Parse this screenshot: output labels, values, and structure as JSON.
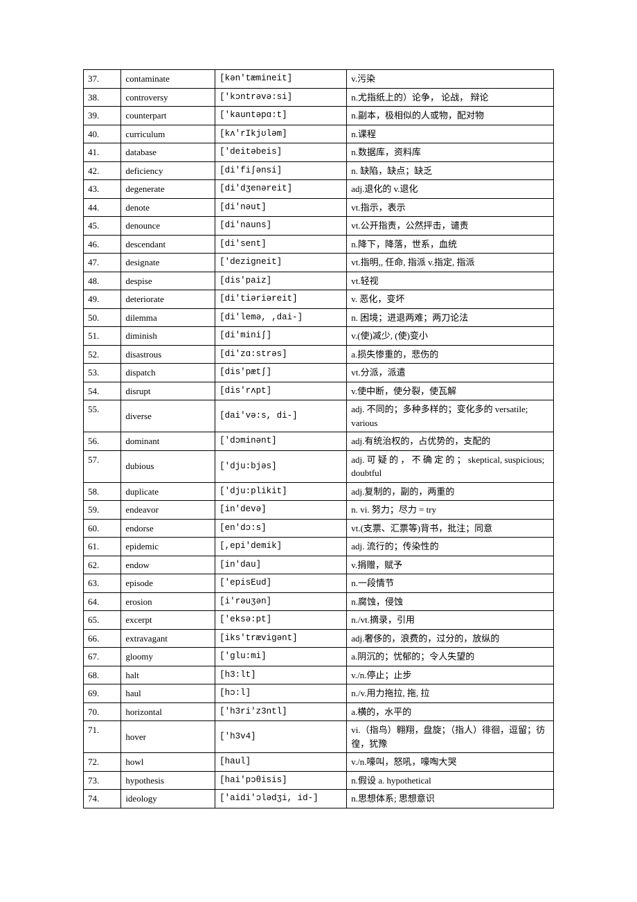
{
  "colors": {
    "page_bg": "#ffffff",
    "border": "#000000",
    "text": "#000000"
  },
  "columns": [
    "num",
    "word",
    "ipa",
    "definition"
  ],
  "rows": [
    {
      "num": "37.",
      "word": "contaminate",
      "ipa": "[kən'tæmineit]",
      "def": "v.污染"
    },
    {
      "num": "38.",
      "word": "controversy",
      "ipa": "['kɔntrəvə:si]",
      "def": "n.尤指纸上的）论争，  论战，  辩论"
    },
    {
      "num": "39.",
      "word": "counterpart",
      "ipa": "['kauntəpɑ:t]",
      "def": " n.副本，极相似的人或物，配对物"
    },
    {
      "num": "40.",
      "word": "curriculum",
      "ipa": "[kʌ'rIkjʊləm]",
      "def": "n.课程"
    },
    {
      "num": "41.",
      "word": "database",
      "ipa": "['deitəbeis]",
      "def": " n.数据库，资料库"
    },
    {
      "num": "42.",
      "word": "deficiency",
      "ipa": "[di'fiʃənsi]",
      "def": "n. 缺陷，缺点；缺乏"
    },
    {
      "num": "43.",
      "word": "degenerate",
      "ipa": "[di'dʒenəreit]",
      "def": "adj.退化的   v.退化"
    },
    {
      "num": "44.",
      "word": "denote",
      "ipa": "[di'nəut]",
      "def": "vt.指示，表示"
    },
    {
      "num": "45.",
      "word": "denounce",
      "ipa": "[di'nauns]",
      "def": "vt.公开指责，公然抨击，谴责"
    },
    {
      "num": "46.",
      "word": "descendant",
      "ipa": "[di'sent]",
      "def": "n.降下，降落，世系，血统"
    },
    {
      "num": "47.",
      "word": "designate",
      "ipa": "['dezigneit]",
      "def": "vt.指明,, 任命, 指派 v.指定, 指派"
    },
    {
      "num": "48.",
      "word": "despise",
      "ipa": "[dis'paiz]",
      "def": "vt.轻视"
    },
    {
      "num": "49.",
      "word": "deteriorate",
      "ipa": "[di'tiəriəreit]",
      "def": "v. 恶化，变坏"
    },
    {
      "num": "50.",
      "word": "dilemma",
      "ipa": "[di'lemə, ,dai-]",
      "def": "n. 困境；进退两难；两刀论法"
    },
    {
      "num": "51.",
      "word": "diminish",
      "ipa": "[di'miniʃ]",
      "def": "v.(使)减少, (使)变小"
    },
    {
      "num": "52.",
      "word": "disastrous",
      "ipa": "[di'zɑ:strəs]",
      "def": "a.损失惨重的，悲伤的"
    },
    {
      "num": "53.",
      "word": "dispatch",
      "ipa": "[dis'pætʃ]",
      "def": "vt.分派，派遣"
    },
    {
      "num": "54.",
      "word": "disrupt",
      "ipa": "[dis'rʌpt]",
      "def": "v.使中断，使分裂，使瓦解"
    },
    {
      "num": "55.",
      "word": "diverse",
      "ipa": "[dai'və:s, di-]",
      "def": "adj. 不同的；多种多样的；变化多的 versatile; various"
    },
    {
      "num": "56.",
      "word": "dominant",
      "ipa": "['dɔminənt]",
      "def": "adj.有统治权的，占优势的，支配的"
    },
    {
      "num": "57.",
      "word": "dubious",
      "ipa": "['dju:bjəs]",
      "def": "adj. 可 疑 的 ， 不 确 定 的 ；  skeptical, suspicious; doubtful"
    },
    {
      "num": "58.",
      "word": "duplicate",
      "ipa": "['dju:plikit]",
      "def": "adj.复制的，副的，两重的"
    },
    {
      "num": "59.",
      "word": "endeavor",
      "ipa": "[in'devə]",
      "def": "n. vi. 努力；尽力 = try"
    },
    {
      "num": "60.",
      "word": "endorse",
      "ipa": "[en'dɔ:s]",
      "def": "vt.(支票、汇票等)背书，批注；同意"
    },
    {
      "num": "61.",
      "word": "epidemic",
      "ipa": "[,epi'demik]",
      "def": "adj. 流行的；传染性的"
    },
    {
      "num": "62.",
      "word": "endow",
      "ipa": "[in'dau]",
      "def": "v.捐赠，赋予"
    },
    {
      "num": "63.",
      "word": "episode",
      "ipa": "['episEud]",
      "def": " n.一段情节"
    },
    {
      "num": "64.",
      "word": "erosion",
      "ipa": "[i'rəuʒən]",
      "def": "n.腐蚀，侵蚀"
    },
    {
      "num": "65.",
      "word": "excerpt",
      "ipa": "['eksə:pt]",
      "def": "  n./vt.摘录，引用"
    },
    {
      "num": "66.",
      "word": "extravagant",
      "ipa": "[iks'trævigənt]",
      "def": "adj.奢侈的，浪费的，过分的，放纵的"
    },
    {
      "num": "67.",
      "word": "gloomy",
      "ipa": "['glu:mi]",
      "def": "a.阴沉的；忧郁的；令人失望的"
    },
    {
      "num": "68.",
      "word": "halt",
      "ipa": "[h3:lt]",
      "def": "v./n.停止；止步"
    },
    {
      "num": "69.",
      "word": "haul",
      "ipa": "[hɔ:l]",
      "def": "n./v.用力拖拉, 拖, 拉"
    },
    {
      "num": "70.",
      "word": "horizontal",
      "ipa": "['h3ri'z3ntl]",
      "def": "a.横的，水平的"
    },
    {
      "num": "71.",
      "word": "hover",
      "ipa": "['h3v4]",
      "def": "vi.（指鸟）翱翔，盘旋；（指人）徘徊，逗留；彷徨，犹豫"
    },
    {
      "num": "72.",
      "word": "howl",
      "ipa": "[haul]",
      "def": "v./n.嚎叫，怒吼，嚎啕大哭"
    },
    {
      "num": "73.",
      "word": "hypothesis",
      "ipa": "[hai'pɔθisis]",
      "def": "n.假设    a. hypothetical"
    },
    {
      "num": "74.",
      "word": "ideology",
      "ipa": "['aidi'ɔlədʒi, id-]",
      "def": "n.思想体系; 思想意识"
    }
  ]
}
